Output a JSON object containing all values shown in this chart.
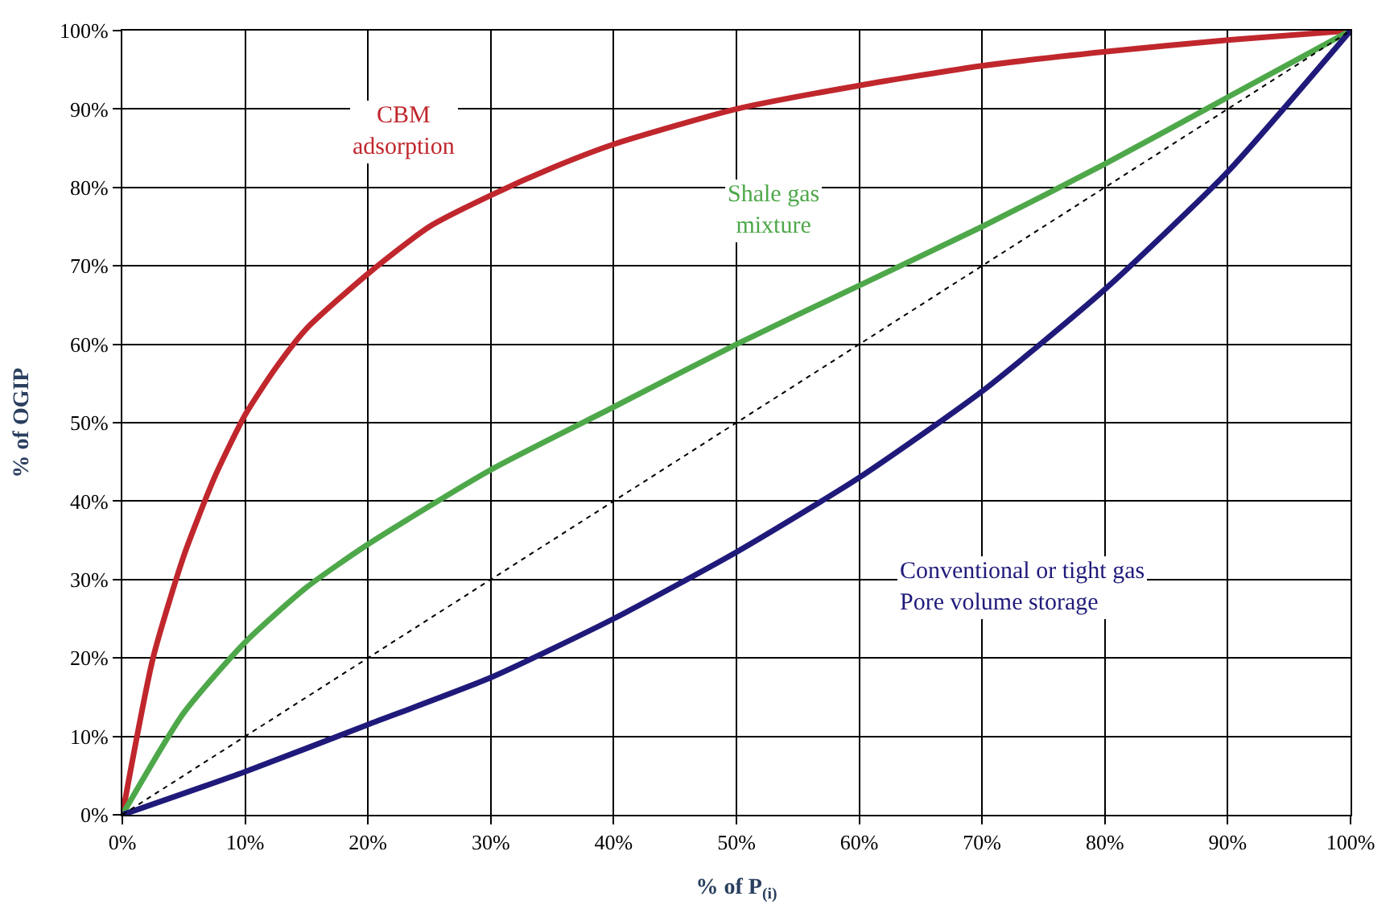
{
  "chart_data": {
    "type": "line",
    "xlabel": "% of P$_{(i)}$",
    "ylabel": "% of OGIP",
    "xlim": [
      0,
      100
    ],
    "ylim": [
      0,
      100
    ],
    "xticks": [
      {
        "value": 0,
        "label": "0%"
      },
      {
        "value": 10,
        "label": "10%"
      },
      {
        "value": 20,
        "label": "20%"
      },
      {
        "value": 30,
        "label": "30%"
      },
      {
        "value": 40,
        "label": "40%"
      },
      {
        "value": 50,
        "label": "50%"
      },
      {
        "value": 60,
        "label": "60%"
      },
      {
        "value": 70,
        "label": "70%"
      },
      {
        "value": 80,
        "label": "80%"
      },
      {
        "value": 90,
        "label": "90%"
      },
      {
        "value": 100,
        "label": "100%"
      }
    ],
    "yticks": [
      {
        "value": 0,
        "label": "0%"
      },
      {
        "value": 10,
        "label": "10%"
      },
      {
        "value": 20,
        "label": "20%"
      },
      {
        "value": 30,
        "label": "30%"
      },
      {
        "value": 40,
        "label": "40%"
      },
      {
        "value": 50,
        "label": "50%"
      },
      {
        "value": 60,
        "label": "60%"
      },
      {
        "value": 70,
        "label": "70%"
      },
      {
        "value": 80,
        "label": "80%"
      },
      {
        "value": 90,
        "label": "90%"
      },
      {
        "value": 100,
        "label": "100%"
      }
    ],
    "grid": true,
    "marker": "none",
    "series": [
      {
        "name": "CBM\nadsorption",
        "color": "#c0272d",
        "x": [
          0,
          2.5,
          5,
          7.5,
          10,
          12.5,
          15,
          20,
          25,
          30,
          35,
          40,
          50,
          60,
          70,
          80,
          90,
          100
        ],
        "values": [
          0,
          20,
          33,
          43,
          51,
          57,
          62,
          69,
          75,
          79,
          82.5,
          85.5,
          90,
          93,
          95.5,
          97.3,
          98.8,
          100
        ]
      },
      {
        "name": "Shale gas\nmixture",
        "color": "#4ea84a",
        "x": [
          0,
          5,
          10,
          15,
          20,
          30,
          40,
          50,
          60,
          70,
          80,
          90,
          100
        ],
        "values": [
          0,
          13,
          22,
          29,
          34.5,
          44,
          52,
          60,
          67.5,
          75,
          83,
          91.5,
          100
        ]
      },
      {
        "name": "Conventional or tight gas\nPore volume storage",
        "color": "#1f1a7a",
        "x": [
          0,
          10,
          20,
          30,
          40,
          50,
          60,
          70,
          80,
          90,
          100
        ],
        "values": [
          0,
          5.5,
          11.5,
          17.5,
          25,
          33.5,
          43,
          54,
          67,
          82,
          100
        ]
      },
      {
        "color": "#000000",
        "line_style": "dotted",
        "x": [
          0,
          100
        ],
        "values": [
          0,
          100
        ]
      }
    ]
  }
}
